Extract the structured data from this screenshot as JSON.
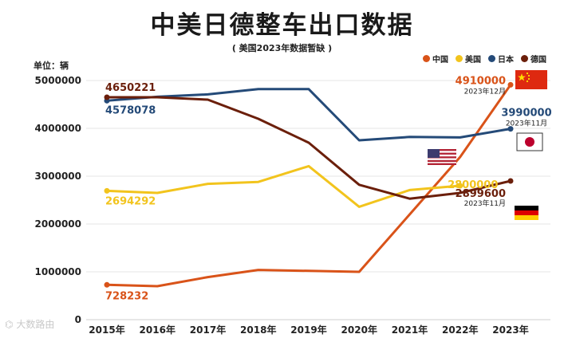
{
  "title": "中美日德整车出口数据",
  "subtitle": "( 美国2023年数据暂缺 )",
  "unit": "单位：辆",
  "watermark": "大数路由",
  "colors": {
    "china": "#d95319",
    "usa": "#f2c41d",
    "japan": "#244a78",
    "germany": "#6b1f0b",
    "grid": "#e6e6e6"
  },
  "legend": [
    {
      "key": "china",
      "label": "中国"
    },
    {
      "key": "usa",
      "label": "美国"
    },
    {
      "key": "japan",
      "label": "日本"
    },
    {
      "key": "germany",
      "label": "德国"
    }
  ],
  "chart_data": {
    "type": "line",
    "title": "中美日德整车出口数据",
    "subtitle": "( 美国2023年数据暂缺 )",
    "ylabel": "单位：辆",
    "categories": [
      "2015年",
      "2016年",
      "2017年",
      "2018年",
      "2019年",
      "2020年",
      "2021年",
      "2022年",
      "2023年"
    ],
    "ylim": [
      0,
      5000000
    ],
    "yticks": [
      0,
      1000000,
      2000000,
      3000000,
      4000000,
      5000000
    ],
    "ytick_labels": [
      "0",
      "1000000",
      "2000000",
      "3000000",
      "4000000",
      "5000000"
    ],
    "grid": true,
    "legend_position": "top-right",
    "series": [
      {
        "key": "china",
        "name": "中国",
        "values": [
          728232,
          700000,
          890000,
          1040000,
          1020000,
          1000000,
          2200000,
          3400000,
          4910000
        ]
      },
      {
        "key": "usa",
        "name": "美国",
        "values": [
          2694292,
          2650000,
          2840000,
          2880000,
          3210000,
          2360000,
          2710000,
          2800000,
          null
        ]
      },
      {
        "key": "japan",
        "name": "日本",
        "values": [
          4578078,
          4660000,
          4710000,
          4820000,
          4820000,
          3750000,
          3820000,
          3810000,
          3990000
        ]
      },
      {
        "key": "germany",
        "name": "德国",
        "values": [
          4650221,
          4650000,
          4600000,
          4200000,
          3700000,
          2820000,
          2530000,
          2650000,
          2899600
        ]
      }
    ],
    "annotations": [
      {
        "series": "china",
        "text": "728232",
        "note": ""
      },
      {
        "series": "china",
        "text": "4910000",
        "note": "2023年12月"
      },
      {
        "series": "usa",
        "text": "2694292",
        "note": ""
      },
      {
        "series": "usa",
        "text": "2800000",
        "note": ""
      },
      {
        "series": "japan",
        "text": "4578078",
        "note": ""
      },
      {
        "series": "japan",
        "text": "3990000",
        "note": "2023年11月"
      },
      {
        "series": "germany",
        "text": "4650221",
        "note": ""
      },
      {
        "series": "germany",
        "text": "2899600",
        "note": "2023年11月"
      }
    ]
  }
}
